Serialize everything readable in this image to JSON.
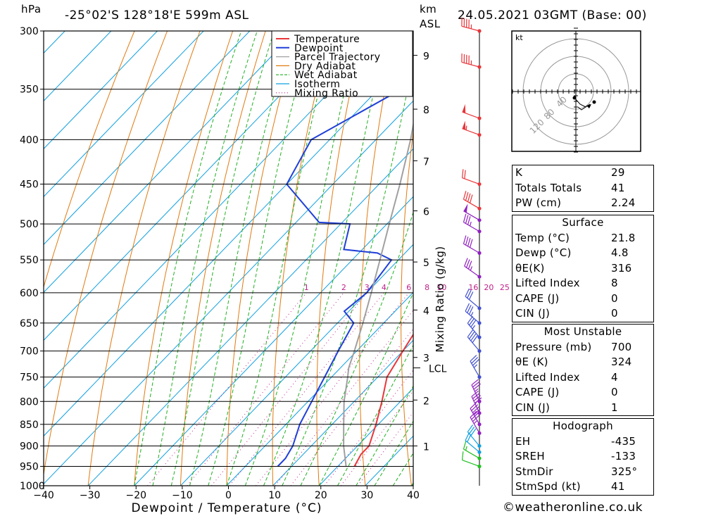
{
  "header": {
    "pressure_unit": "hPa",
    "location": "-25°02'S  128°18'E  599m  ASL",
    "height_unit": "km",
    "height_ref": "ASL",
    "datetime": "24.05.2021  03GMT  (Base: 00)"
  },
  "footer": {
    "credit": "©weatheronline.co.uk"
  },
  "chart_data": {
    "type": "line",
    "title": "",
    "xlabel": "Dewpoint / Temperature (°C)",
    "ylabel": "hPa",
    "xlim": [
      -40,
      40
    ],
    "ylim": [
      1000,
      300
    ],
    "log_y": true,
    "pressure_ticks": [
      300,
      350,
      400,
      450,
      500,
      550,
      600,
      650,
      700,
      750,
      800,
      850,
      900,
      950,
      1000
    ],
    "temperature_ticks": [
      -40,
      -30,
      -20,
      -10,
      0,
      10,
      20,
      30,
      40
    ],
    "height_axis": {
      "label": "km ASL",
      "ticks": [
        {
          "km": "1",
          "p": 900
        },
        {
          "km": "2",
          "p": 797
        },
        {
          "km": "3",
          "p": 712
        },
        {
          "km": "4",
          "p": 628
        },
        {
          "km": "5",
          "p": 553
        },
        {
          "km": "6",
          "p": 483
        },
        {
          "km": "7",
          "p": 423
        },
        {
          "km": "8",
          "p": 369
        },
        {
          "km": "9",
          "p": 320
        }
      ],
      "lcl": {
        "label": "LCL",
        "p": 732
      }
    },
    "mixing_ratio_label": "Mixing Ratio (g/kg)",
    "mixing_ratios": [
      "1",
      "2",
      "3",
      "4",
      "6",
      "8",
      "10",
      "16",
      "20",
      "25"
    ],
    "legend": {
      "position": "top-right",
      "entries": [
        {
          "name": "Temperature",
          "color": "#e8363a"
        },
        {
          "name": "Dewpoint",
          "color": "#2040d8"
        },
        {
          "name": "Parcel Trajectory",
          "color": "#a0a0a0"
        },
        {
          "name": "Dry Adiabat",
          "color": "#e07a10"
        },
        {
          "name": "Wet Adiabat",
          "color": "#20b020"
        },
        {
          "name": "Isotherm",
          "color": "#10a0e0"
        },
        {
          "name": "Mixing Ratio",
          "color": "#c0208a"
        }
      ]
    },
    "series": [
      {
        "name": "Temperature",
        "points": [
          [
            950,
            23.6
          ],
          [
            920,
            22.5
          ],
          [
            900,
            22.5
          ],
          [
            850,
            19.5
          ],
          [
            800,
            16.0
          ],
          [
            750,
            12.0
          ],
          [
            700,
            10.0
          ],
          [
            670,
            8.8
          ],
          [
            650,
            9.0
          ],
          [
            620,
            9.0
          ],
          [
            600,
            8.5
          ],
          [
            570,
            5.5
          ],
          [
            550,
            3.5
          ],
          [
            545,
            4.5
          ],
          [
            540,
            7.6
          ],
          [
            520,
            5.0
          ],
          [
            500,
            -0.2
          ],
          [
            495,
            -0.2
          ],
          [
            470,
            -2.0
          ],
          [
            450,
            -4.2
          ],
          [
            400,
            -10.0
          ],
          [
            370,
            -15.0
          ],
          [
            350,
            -19.5
          ],
          [
            320,
            -26.5
          ],
          [
            312,
            -28.5
          ],
          [
            300,
            -31.5
          ]
        ]
      },
      {
        "name": "Dewpoint",
        "points": [
          [
            950,
            7.0
          ],
          [
            930,
            7.0
          ],
          [
            900,
            6.0
          ],
          [
            850,
            3.0
          ],
          [
            800,
            0.8
          ],
          [
            750,
            -1.5
          ],
          [
            700,
            -4.0
          ],
          [
            650,
            -6.5
          ],
          [
            630,
            -11.0
          ],
          [
            600,
            -10.0
          ],
          [
            550,
            -11.5
          ],
          [
            540,
            -16.0
          ],
          [
            535,
            -24.0
          ],
          [
            500,
            -28.0
          ],
          [
            498,
            -35.0
          ],
          [
            450,
            -50.0
          ],
          [
            400,
            -54.0
          ],
          [
            350,
            -45.0
          ],
          [
            320,
            -40.0
          ],
          [
            310,
            -44.0
          ],
          [
            300,
            -47.0
          ]
        ]
      },
      {
        "name": "Parcel Trajectory",
        "points": [
          [
            950,
            21.8
          ],
          [
            900,
            17.0
          ],
          [
            850,
            12.5
          ],
          [
            800,
            7.8
          ],
          [
            750,
            3.5
          ],
          [
            732,
            1.8
          ],
          [
            700,
            -0.5
          ],
          [
            650,
            -4.5
          ],
          [
            600,
            -9.0
          ],
          [
            550,
            -14.0
          ],
          [
            500,
            -19.5
          ],
          [
            450,
            -25.5
          ],
          [
            400,
            -32.5
          ],
          [
            350,
            -41.0
          ],
          [
            300,
            -50.5
          ]
        ]
      }
    ],
    "winds": [
      {
        "p": 950,
        "dir": 290,
        "kt": 10
      },
      {
        "p": 930,
        "dir": 300,
        "kt": 15
      },
      {
        "p": 915,
        "dir": 310,
        "kt": 20
      },
      {
        "p": 900,
        "dir": 320,
        "kt": 30
      },
      {
        "p": 870,
        "dir": 330,
        "kt": 35
      },
      {
        "p": 850,
        "dir": 330,
        "kt": 40
      },
      {
        "p": 825,
        "dir": 335,
        "kt": 40
      },
      {
        "p": 800,
        "dir": 335,
        "kt": 35
      },
      {
        "p": 750,
        "dir": 330,
        "kt": 35
      },
      {
        "p": 700,
        "dir": 320,
        "kt": 40
      },
      {
        "p": 675,
        "dir": 320,
        "kt": 35
      },
      {
        "p": 650,
        "dir": 310,
        "kt": 35
      },
      {
        "p": 625,
        "dir": 310,
        "kt": 30
      },
      {
        "p": 575,
        "dir": 305,
        "kt": 35
      },
      {
        "p": 540,
        "dir": 300,
        "kt": 40
      },
      {
        "p": 510,
        "dir": 300,
        "kt": 35
      },
      {
        "p": 495,
        "dir": 300,
        "kt": 50
      },
      {
        "p": 480,
        "dir": 300,
        "kt": 40
      },
      {
        "p": 450,
        "dir": 290,
        "kt": 20
      },
      {
        "p": 395,
        "dir": 290,
        "kt": 55
      },
      {
        "p": 378,
        "dir": 290,
        "kt": 50
      },
      {
        "p": 330,
        "dir": 285,
        "kt": 45
      },
      {
        "p": 300,
        "dir": 285,
        "kt": 45
      }
    ],
    "hodograph": {
      "unit": "kt",
      "rings": [
        "40",
        "80",
        "120"
      ]
    }
  },
  "indices": [
    {
      "label": "K",
      "value": "29"
    },
    {
      "label": "Totals Totals",
      "value": "41"
    },
    {
      "label": "PW (cm)",
      "value": "2.24"
    }
  ],
  "surface": {
    "title": "Surface",
    "rows": [
      {
        "label": "Temp (°C)",
        "value": "21.8"
      },
      {
        "label": "Dewp (°C)",
        "value": "4.8"
      },
      {
        "label": "θE(K)",
        "value": "316"
      },
      {
        "label": "Lifted Index",
        "value": "8"
      },
      {
        "label": "CAPE (J)",
        "value": "0"
      },
      {
        "label": "CIN (J)",
        "value": "0"
      }
    ]
  },
  "most_unstable": {
    "title": "Most Unstable",
    "rows": [
      {
        "label": "Pressure (mb)",
        "value": "700"
      },
      {
        "label": "θE (K)",
        "value": "324"
      },
      {
        "label": "Lifted Index",
        "value": "4"
      },
      {
        "label": "CAPE (J)",
        "value": "0"
      },
      {
        "label": "CIN (J)",
        "value": "1"
      }
    ]
  },
  "hodograph_table": {
    "title": "Hodograph",
    "rows": [
      {
        "label": "EH",
        "value": "-435"
      },
      {
        "label": "SREH",
        "value": "-133"
      },
      {
        "label": "StmDir",
        "value": "325°"
      },
      {
        "label": "StmSpd (kt)",
        "value": "41"
      }
    ]
  }
}
